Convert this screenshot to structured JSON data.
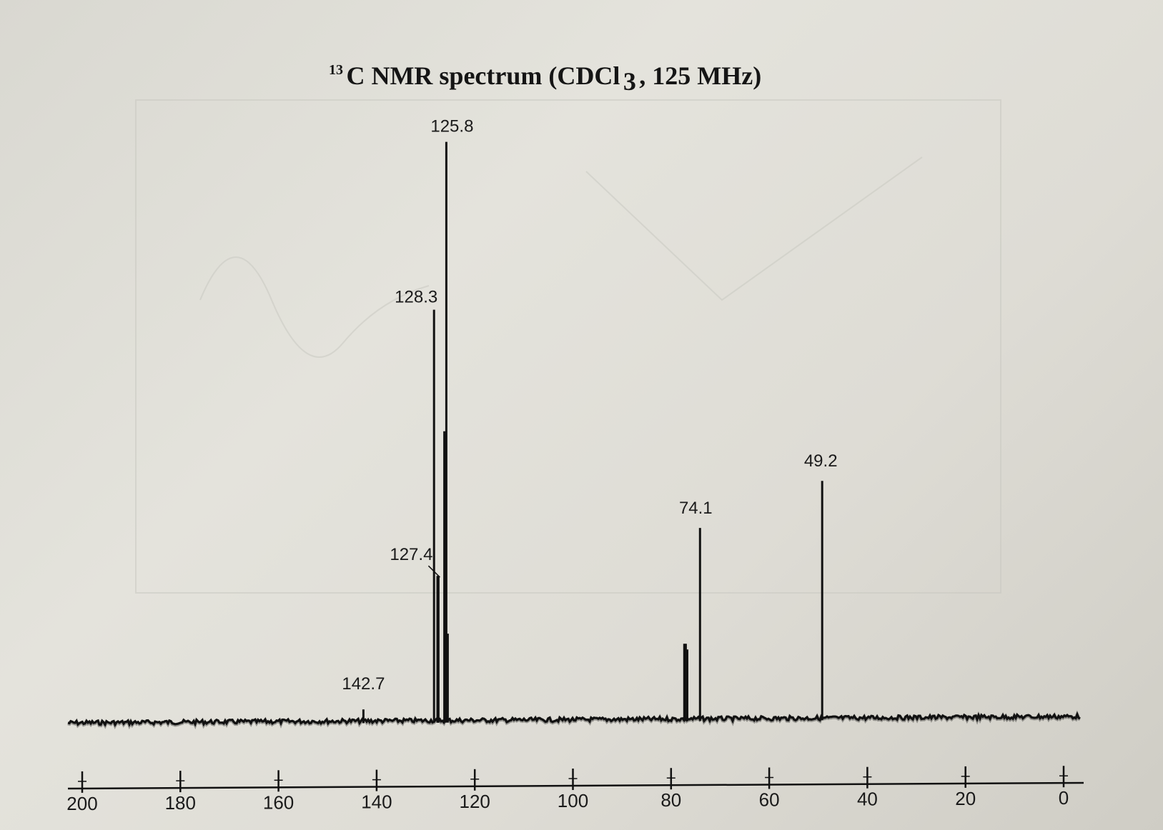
{
  "chart_data": {
    "type": "line",
    "title": {
      "superscript": "13",
      "text": "C NMR spectrum (CDCl",
      "subscript": "3",
      "suffix": ", 125 MHz)"
    },
    "x_axis": {
      "reversed": true,
      "range": [
        200,
        0
      ],
      "ticks": [
        200,
        180,
        160,
        140,
        120,
        100,
        80,
        60,
        40,
        20,
        0
      ],
      "tick_labels": [
        "200",
        "180",
        "160",
        "140",
        "120",
        "100",
        "80",
        "60",
        "40",
        "20",
        "0"
      ],
      "xlabel": ""
    },
    "y_axis": {
      "shown": false,
      "range": [
        0,
        100
      ]
    },
    "grid": false,
    "legend": "none",
    "line_color": "#111111",
    "peaks": [
      {
        "shift": 142.7,
        "intensity": 2,
        "label": "142.7"
      },
      {
        "shift": 128.3,
        "intensity": 71,
        "label": "128.3"
      },
      {
        "shift": 127.6,
        "intensity": 25,
        "label": ""
      },
      {
        "shift": 127.4,
        "intensity": 25,
        "label": "127.4"
      },
      {
        "shift": 126.2,
        "intensity": 50,
        "label": ""
      },
      {
        "shift": 125.8,
        "intensity": 100,
        "label": "125.8"
      },
      {
        "shift": 125.5,
        "intensity": 15,
        "label": ""
      },
      {
        "shift": 77.3,
        "intensity": 13,
        "label": ""
      },
      {
        "shift": 77.0,
        "intensity": 13,
        "label": ""
      },
      {
        "shift": 76.7,
        "intensity": 12,
        "label": ""
      },
      {
        "shift": 74.1,
        "intensity": 33,
        "label": "74.1"
      },
      {
        "shift": 49.2,
        "intensity": 41,
        "label": "49.2"
      }
    ]
  }
}
